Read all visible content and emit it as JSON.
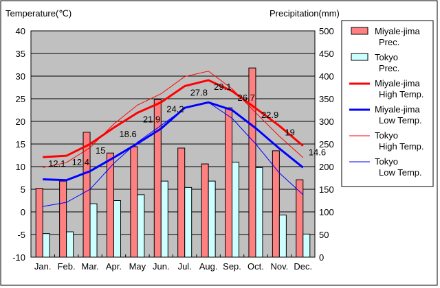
{
  "chart_data": {
    "type": "bar+line",
    "left_axis_title": "Temperature(℃)",
    "right_axis_title": "Precipitation(mm)",
    "left_ylim": [
      -10,
      40
    ],
    "left_ticks": [
      40,
      35,
      30,
      25,
      20,
      15,
      10,
      5,
      0,
      -5,
      -10
    ],
    "right_ylim": [
      0,
      500
    ],
    "right_ticks": [
      500,
      450,
      400,
      350,
      300,
      250,
      200,
      150,
      100,
      50,
      0
    ],
    "categories": [
      "Jan.",
      "Feb.",
      "Mar.",
      "Apr.",
      "May",
      "Jun.",
      "Jul.",
      "Aug.",
      "Sep.",
      "Oct.",
      "Nov.",
      "Dec."
    ],
    "grid": true,
    "legend_placement": "right",
    "bars": [
      {
        "name": "Miyale-jima Prec.",
        "color": "#ff8080",
        "values": [
          152,
          168,
          276,
          230,
          244,
          348,
          241,
          206,
          330,
          418,
          235,
          171
        ]
      },
      {
        "name": "Tokyo Prec.",
        "color": "#ccffff",
        "values": [
          52,
          56,
          118,
          125,
          138,
          168,
          154,
          168,
          210,
          198,
          93,
          51
        ]
      }
    ],
    "lines": [
      {
        "name": "Miyale-jima High Temp.",
        "color": "#ff0000",
        "width": 3,
        "values": [
          12.1,
          12.4,
          15,
          18.6,
          21.9,
          24.2,
          27.8,
          29.1,
          26.7,
          22.9,
          19,
          14.6
        ],
        "labels": [
          "12.1",
          "12.4",
          "15",
          "18.6",
          "21.9",
          "24.2",
          "27.8",
          "29.1",
          "26.7",
          "22.9",
          "19",
          "14.6"
        ]
      },
      {
        "name": "Miyale-jima Low Temp.",
        "color": "#0000ff",
        "width": 3,
        "values": [
          7.2,
          7.0,
          9.0,
          12.0,
          15.1,
          18.4,
          23.0,
          24.2,
          22.5,
          18.5,
          14.0,
          9.8
        ]
      },
      {
        "name": "Tokyo High Temp.",
        "color": "#ff0000",
        "width": 1,
        "values": [
          9.8,
          10.9,
          14.2,
          19.4,
          23.6,
          26.1,
          29.9,
          31.1,
          27.2,
          21.9,
          16.7,
          12.0
        ]
      },
      {
        "name": "Tokyo Low Temp.",
        "color": "#0000ff",
        "width": 1,
        "values": [
          1.2,
          2.1,
          5.0,
          10.7,
          15.4,
          19.1,
          22.9,
          24.2,
          20.7,
          15.0,
          8.6,
          3.8
        ]
      }
    ],
    "legend": [
      {
        "l1": "Miyale-jima",
        "l2": "Prec."
      },
      {
        "l1": "Tokyo",
        "l2": "Prec."
      },
      {
        "l1": "Miyale-jima",
        "l2": "High Temp."
      },
      {
        "l1": "Miyale-jima",
        "l2": "Low Temp."
      },
      {
        "l1": "Tokyo",
        "l2": "High Temp."
      },
      {
        "l1": "Tokyo",
        "l2": "Low Temp."
      }
    ]
  }
}
